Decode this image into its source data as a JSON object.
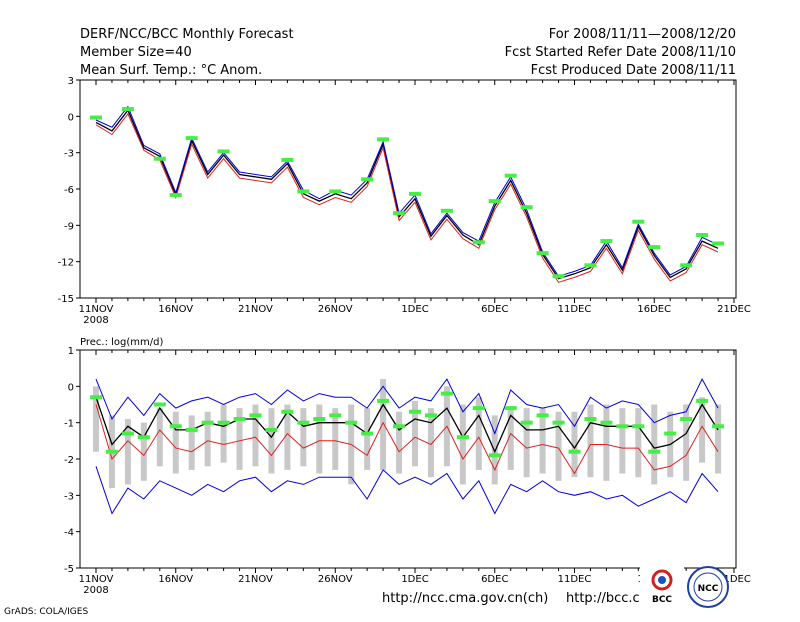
{
  "header": {
    "title_line1": "DERF/NCC/BCC Monthly Forecast",
    "title_line2": "Member Size=40",
    "title_line3": "Mean Surf. Temp.: °C Anom.",
    "period": "For 2008/11/11—2008/12/20",
    "refer_date": "Fcst Started Refer Date 2008/11/10",
    "produced_date": "Fcst Produced Date 2008/11/11"
  },
  "footer": {
    "credit": "GrADS: COLA/IGES",
    "url1": "http://ncc.cma.gov.cn(ch)",
    "url2": "http://bcc.c",
    "logo_bcc": "BCC",
    "logo_ncc": "NCC"
  },
  "colors": {
    "ensemble_bar": "#c8c8c8",
    "observed": "#44ee44",
    "upper": "#0000dd",
    "lower": "#dd2222",
    "mean": "#000000"
  },
  "chart_data": [
    {
      "type": "line",
      "title": "Mean Surf. Temp.: °C Anom.",
      "xlabel": "",
      "ylabel": "",
      "ylim": [
        -15,
        3
      ],
      "yticks": [
        3,
        0,
        -3,
        -6,
        -9,
        -12,
        -15
      ],
      "ytick_labels": [
        "3",
        "0",
        "-3",
        "-6",
        "-9",
        "-12",
        "-15"
      ],
      "xticks": [
        0,
        5,
        10,
        15,
        20,
        25,
        30,
        35,
        40
      ],
      "xtick_labels": [
        "11NOV",
        "16NOV",
        "21NOV",
        "26NOV",
        "1DEC",
        "6DEC",
        "11DEC",
        "16DEC",
        "21DEC"
      ],
      "xtick_sublabel": "2008",
      "days": 40,
      "series": [
        {
          "name": "ensemble mean",
          "color": "#000000",
          "values": [
            -0.5,
            -1.2,
            0.5,
            -2.6,
            -3.3,
            -6.5,
            -2.0,
            -4.8,
            -3.2,
            -4.8,
            -5.0,
            -5.2,
            -3.9,
            -6.4,
            -7.0,
            -6.4,
            -6.8,
            -5.5,
            -2.3,
            -8.3,
            -6.8,
            -9.9,
            -8.2,
            -9.8,
            -10.6,
            -7.4,
            -5.3,
            -8.0,
            -11.4,
            -13.4,
            -13.0,
            -12.5,
            -10.6,
            -12.7,
            -9.1,
            -11.5,
            -13.3,
            -12.6,
            -10.3,
            -10.9
          ]
        },
        {
          "name": "upper member",
          "color": "#0000dd",
          "values": [
            -0.3,
            -0.9,
            0.8,
            -2.4,
            -3.1,
            -6.3,
            -1.8,
            -4.6,
            -3.0,
            -4.6,
            -4.8,
            -5.0,
            -3.7,
            -6.1,
            -6.8,
            -6.1,
            -6.5,
            -5.2,
            -2.1,
            -8.0,
            -6.5,
            -9.7,
            -8.0,
            -9.6,
            -10.3,
            -7.1,
            -5.0,
            -7.7,
            -11.2,
            -13.2,
            -12.8,
            -12.3,
            -10.3,
            -12.5,
            -8.9,
            -11.3,
            -13.1,
            -12.4,
            -10.0,
            -10.6
          ]
        },
        {
          "name": "lower member",
          "color": "#dd2222",
          "values": [
            -0.7,
            -1.5,
            0.2,
            -2.8,
            -3.6,
            -6.7,
            -2.3,
            -5.1,
            -3.5,
            -5.1,
            -5.3,
            -5.5,
            -4.2,
            -6.7,
            -7.3,
            -6.7,
            -7.1,
            -5.8,
            -2.6,
            -8.6,
            -7.1,
            -10.2,
            -8.5,
            -10.1,
            -10.9,
            -7.7,
            -5.6,
            -8.3,
            -11.7,
            -13.7,
            -13.3,
            -12.8,
            -10.9,
            -13.0,
            -9.4,
            -11.8,
            -13.6,
            -12.9,
            -10.6,
            -11.2
          ]
        }
      ],
      "observed": [
        -0.1,
        null,
        0.6,
        null,
        -3.5,
        -6.5,
        -1.8,
        null,
        -2.9,
        null,
        null,
        null,
        -3.6,
        -6.2,
        null,
        -6.2,
        null,
        -5.2,
        -1.9,
        -8.0,
        -6.4,
        null,
        -7.8,
        null,
        -10.4,
        -7.0,
        -4.9,
        -7.5,
        -11.3,
        -13.2,
        null,
        -12.3,
        -10.3,
        null,
        -8.7,
        -10.8,
        null,
        -12.3,
        -9.8,
        -10.5
      ]
    },
    {
      "type": "line",
      "title": "Prec.: log(mm/d)",
      "xlabel": "",
      "ylabel": "",
      "ylim": [
        -5,
        1
      ],
      "yticks": [
        1,
        0,
        -1,
        -2,
        -3,
        -4,
        -5
      ],
      "ytick_labels": [
        "1",
        "0",
        "-1",
        "-2",
        "-3",
        "-4",
        "-5"
      ],
      "xticks": [
        0,
        5,
        10,
        15,
        20,
        25,
        30,
        35,
        40
      ],
      "xtick_labels": [
        "11NOV",
        "16NOV",
        "21NOV",
        "26NOV",
        "1DEC",
        "6DEC",
        "11DEC",
        "16DEC",
        "21DEC"
      ],
      "xtick_sublabel": "2008",
      "days": 40,
      "bars": {
        "name": "ensemble spread",
        "top": [
          0.0,
          -0.8,
          -0.9,
          -1.0,
          -0.6,
          -0.7,
          -0.8,
          -0.7,
          -0.5,
          -0.6,
          -0.5,
          -0.6,
          -0.5,
          -0.6,
          -0.5,
          -0.6,
          -0.5,
          -0.6,
          0.2,
          -0.7,
          -0.4,
          -0.6,
          0.0,
          -0.5,
          -0.3,
          -0.8,
          -0.6,
          -0.6,
          -0.6,
          -0.7,
          -0.7,
          -0.5,
          -0.5,
          -0.6,
          -0.6,
          -0.5,
          -0.7,
          -0.5,
          -0.3,
          -0.5
        ],
        "bottom": [
          -1.8,
          -2.8,
          -2.7,
          -2.6,
          -2.2,
          -2.4,
          -2.3,
          -2.2,
          -2.1,
          -2.3,
          -2.2,
          -2.4,
          -2.3,
          -2.2,
          -2.4,
          -2.3,
          -2.7,
          -2.3,
          -2.3,
          -2.4,
          -2.2,
          -2.5,
          -2.2,
          -2.7,
          -2.3,
          -2.7,
          -2.3,
          -2.5,
          -2.4,
          -2.6,
          -2.5,
          -2.5,
          -2.6,
          -2.4,
          -2.5,
          -2.7,
          -2.5,
          -2.6,
          -2.1,
          -2.4
        ]
      },
      "series": [
        {
          "name": "ensemble mean",
          "color": "#000000",
          "values": [
            -0.3,
            -1.6,
            -1.1,
            -1.4,
            -0.6,
            -1.2,
            -1.2,
            -1.0,
            -1.1,
            -0.9,
            -0.9,
            -1.4,
            -0.7,
            -1.1,
            -1.0,
            -1.0,
            -1.0,
            -1.3,
            -0.5,
            -1.2,
            -0.9,
            -1.0,
            -0.6,
            -1.4,
            -0.8,
            -1.8,
            -0.8,
            -1.2,
            -1.2,
            -1.1,
            -1.7,
            -1.0,
            -1.1,
            -1.1,
            -1.1,
            -1.7,
            -1.6,
            -1.3,
            -0.5,
            -1.2
          ]
        },
        {
          "name": "upper member",
          "color": "#0000dd",
          "values": [
            0.2,
            -0.9,
            -0.3,
            -0.8,
            -0.2,
            -0.6,
            -0.4,
            -0.3,
            -0.5,
            -0.3,
            -0.2,
            -0.5,
            -0.1,
            -0.4,
            -0.2,
            -0.3,
            -0.3,
            -0.6,
            0.0,
            -0.6,
            -0.3,
            -0.4,
            0.2,
            -0.7,
            -0.2,
            -1.3,
            -0.1,
            -0.5,
            -0.6,
            -0.5,
            -1.1,
            -0.3,
            -0.6,
            -0.4,
            -0.5,
            -1.0,
            -0.8,
            -0.7,
            0.2,
            -0.6
          ]
        },
        {
          "name": "lower member",
          "color": "#dd2222",
          "values": [
            -0.5,
            -2.0,
            -1.5,
            -1.9,
            -1.2,
            -1.7,
            -1.8,
            -1.5,
            -1.6,
            -1.5,
            -1.4,
            -1.9,
            -1.3,
            -1.7,
            -1.5,
            -1.5,
            -1.6,
            -1.9,
            -1.0,
            -1.8,
            -1.4,
            -1.6,
            -1.1,
            -2.0,
            -1.4,
            -2.3,
            -1.3,
            -1.7,
            -1.6,
            -1.7,
            -2.4,
            -1.6,
            -1.6,
            -1.7,
            -1.7,
            -2.3,
            -2.2,
            -1.9,
            -1.1,
            -1.8
          ]
        },
        {
          "name": "lower member 2",
          "color": "#0000dd",
          "values": [
            -2.2,
            -3.5,
            -2.8,
            -3.1,
            -2.6,
            -2.8,
            -3.0,
            -2.7,
            -2.9,
            -2.6,
            -2.5,
            -2.9,
            -2.6,
            -2.7,
            -2.5,
            -2.5,
            -2.5,
            -3.1,
            -2.3,
            -2.7,
            -2.5,
            -2.7,
            -2.4,
            -3.1,
            -2.6,
            -3.5,
            -2.7,
            -2.9,
            -2.6,
            -2.9,
            -3.0,
            -2.9,
            -3.1,
            -3.0,
            -3.3,
            -3.1,
            -2.9,
            -3.2,
            -2.4,
            -2.9
          ]
        }
      ],
      "observed": [
        -0.3,
        -1.8,
        -1.3,
        -1.4,
        -0.5,
        -1.1,
        -1.2,
        -1.0,
        -1.0,
        -0.9,
        -0.8,
        -1.2,
        -0.7,
        -1.0,
        -0.9,
        -0.8,
        -1.0,
        -1.3,
        -0.4,
        -1.1,
        -0.7,
        -0.8,
        -0.2,
        -1.4,
        -0.6,
        -1.9,
        -0.6,
        -1.0,
        -0.8,
        -1.0,
        -1.8,
        -0.9,
        -1.0,
        -1.1,
        -1.1,
        -1.8,
        -1.3,
        -0.9,
        -0.4,
        -1.1
      ]
    }
  ]
}
